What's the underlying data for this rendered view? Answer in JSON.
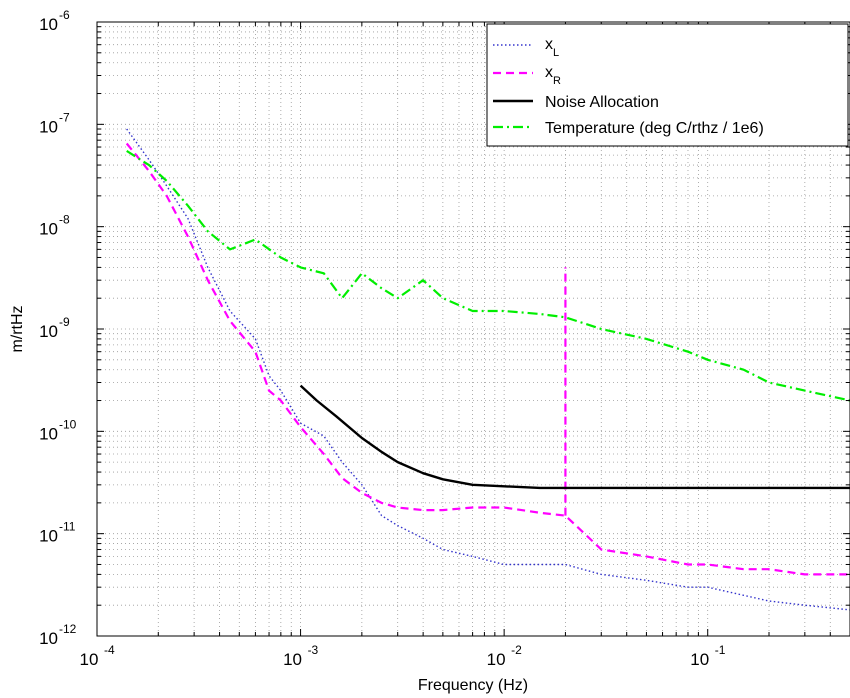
{
  "chart_data": {
    "type": "line",
    "title": "",
    "xlabel": "Frequency (Hz)",
    "ylabel": "m/rtHz",
    "xscale": "log",
    "yscale": "log",
    "xlim": [
      0.0001,
      0.5
    ],
    "ylim": [
      1e-12,
      1e-06
    ],
    "grid": true,
    "legend_position": "top-right",
    "x_ticks": [
      {
        "base": "10",
        "exp": "-4"
      },
      {
        "base": "10",
        "exp": "-3"
      },
      {
        "base": "10",
        "exp": "-2"
      },
      {
        "base": "10",
        "exp": "-1"
      }
    ],
    "y_ticks": [
      {
        "base": "10",
        "exp": "-12"
      },
      {
        "base": "10",
        "exp": "-11"
      },
      {
        "base": "10",
        "exp": "-10"
      },
      {
        "base": "10",
        "exp": "-9"
      },
      {
        "base": "10",
        "exp": "-8"
      },
      {
        "base": "10",
        "exp": "-7"
      },
      {
        "base": "10",
        "exp": "-6"
      }
    ],
    "series": [
      {
        "name": "x_L",
        "legend_main": "x",
        "legend_sub": "L",
        "color": "#3333cc",
        "style": "dotted",
        "x": [
          0.00014,
          0.00018,
          0.00022,
          0.00028,
          0.00035,
          0.00045,
          0.0006,
          0.0007,
          0.0008,
          0.001,
          0.0013,
          0.0016,
          0.002,
          0.0025,
          0.003,
          0.004,
          0.005,
          0.007,
          0.01,
          0.015,
          0.02,
          0.03,
          0.05,
          0.08,
          0.1,
          0.15,
          0.2,
          0.3,
          0.5
        ],
        "y": [
          9e-08,
          4.5e-08,
          2.5e-08,
          1.2e-08,
          4e-09,
          1.5e-09,
          8e-10,
          3.5e-10,
          2.5e-10,
          1.2e-10,
          9e-11,
          5e-11,
          3e-11,
          1.5e-11,
          1.2e-11,
          9e-12,
          7e-12,
          6e-12,
          5e-12,
          5e-12,
          5e-12,
          4e-12,
          3.5e-12,
          3e-12,
          3e-12,
          2.5e-12,
          2.2e-12,
          2e-12,
          1.8e-12
        ]
      },
      {
        "name": "x_R",
        "legend_main": "x",
        "legend_sub": "R",
        "color": "#ff00ff",
        "style": "dashed",
        "x": [
          0.00014,
          0.00018,
          0.00022,
          0.00028,
          0.00035,
          0.00045,
          0.0006,
          0.0007,
          0.0008,
          0.001,
          0.0013,
          0.0016,
          0.002,
          0.0025,
          0.003,
          0.004,
          0.005,
          0.007,
          0.01,
          0.015,
          0.02,
          0.03,
          0.05,
          0.08,
          0.1,
          0.15,
          0.2,
          0.3,
          0.5
        ],
        "y": [
          6.5e-08,
          3.5e-08,
          2e-08,
          8e-09,
          3e-09,
          1.2e-09,
          6e-10,
          2.5e-10,
          2e-10,
          1.1e-10,
          6e-11,
          3.5e-11,
          2.5e-11,
          2e-11,
          1.8e-11,
          1.7e-11,
          1.7e-11,
          1.8e-11,
          1.8e-11,
          1.6e-11,
          1.5e-11,
          7e-12,
          6e-12,
          5e-12,
          5e-12,
          4.5e-12,
          4.5e-12,
          4e-12,
          4e-12
        ],
        "spike": {
          "x": 0.02,
          "y": 4e-09
        }
      },
      {
        "name": "Noise Allocation",
        "legend_label": "Noise Allocation",
        "color": "#000000",
        "style": "solid",
        "x": [
          0.001,
          0.0012,
          0.0015,
          0.002,
          0.0025,
          0.003,
          0.004,
          0.005,
          0.007,
          0.01,
          0.015,
          0.02,
          0.05,
          0.1,
          0.2,
          0.5
        ],
        "y": [
          2.8e-10,
          2e-10,
          1.4e-10,
          8.6e-11,
          6.3e-11,
          5e-11,
          3.9e-11,
          3.4e-11,
          3e-11,
          2.9e-11,
          2.8e-11,
          2.8e-11,
          2.8e-11,
          2.8e-11,
          2.8e-11,
          2.8e-11
        ]
      },
      {
        "name": "Temperature",
        "legend_label": "Temperature  (deg C/rthz / 1e6)",
        "color": "#00ee00",
        "style": "dashdot",
        "x": [
          0.00014,
          0.00018,
          0.00022,
          0.00028,
          0.00035,
          0.00045,
          0.0006,
          0.0008,
          0.001,
          0.0013,
          0.0016,
          0.002,
          0.0025,
          0.003,
          0.004,
          0.005,
          0.007,
          0.01,
          0.015,
          0.02,
          0.03,
          0.05,
          0.08,
          0.1,
          0.15,
          0.2,
          0.3,
          0.5
        ],
        "y": [
          5.5e-08,
          4e-08,
          2.8e-08,
          1.6e-08,
          9e-09,
          6e-09,
          7.5e-09,
          5e-09,
          4e-09,
          3.5e-09,
          2e-09,
          3.5e-09,
          2.5e-09,
          2e-09,
          3e-09,
          2e-09,
          1.5e-09,
          1.5e-09,
          1.4e-09,
          1.3e-09,
          1e-09,
          8e-10,
          6e-10,
          5e-10,
          4e-10,
          3e-10,
          2.5e-10,
          2e-10
        ]
      }
    ]
  }
}
